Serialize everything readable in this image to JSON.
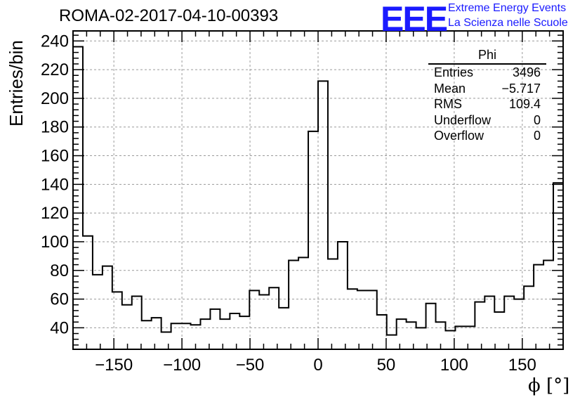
{
  "title": "ROMA-02-2017-04-10-00393",
  "logo": {
    "mark": "EEE",
    "line1": "Extreme Energy Events",
    "line2": "La Scienza nelle Scuole",
    "color": "#1a1aff"
  },
  "stats_box": {
    "title": "Phi",
    "rows": [
      {
        "label": "Entries",
        "value": "3496"
      },
      {
        "label": "Mean",
        "value": "−5.717"
      },
      {
        "label": "RMS",
        "value": "109.4"
      },
      {
        "label": "Underflow",
        "value": "0"
      },
      {
        "label": "Overflow",
        "value": "0"
      }
    ]
  },
  "chart_data": {
    "type": "bar",
    "histogram": true,
    "title": "ROMA-02-2017-04-10-00393",
    "xlabel": "ϕ [°]",
    "ylabel": "Entries/bin",
    "xlim": [
      -180,
      180
    ],
    "ylim": [
      25,
      247
    ],
    "bin_width": 7.2,
    "x_ticks": [
      -150,
      -100,
      -50,
      0,
      50,
      100,
      150
    ],
    "x_tick_labels": [
      "−150",
      "−100",
      "−50",
      "0",
      "50",
      "100",
      "150"
    ],
    "y_ticks": [
      40,
      60,
      80,
      100,
      120,
      140,
      160,
      180,
      200,
      220,
      240
    ],
    "grid": true,
    "series": [
      {
        "values": [
          236,
          104,
          77,
          83,
          65,
          56,
          62,
          45,
          47,
          37,
          43,
          43,
          42,
          46,
          53,
          46,
          50,
          48,
          66,
          63,
          68,
          54,
          87,
          89,
          177,
          212,
          88,
          100,
          67,
          66,
          66,
          49,
          35,
          46,
          44,
          40,
          57,
          44,
          38,
          41,
          41,
          58,
          62,
          51,
          62,
          60,
          69,
          84,
          87,
          141
        ]
      }
    ]
  }
}
